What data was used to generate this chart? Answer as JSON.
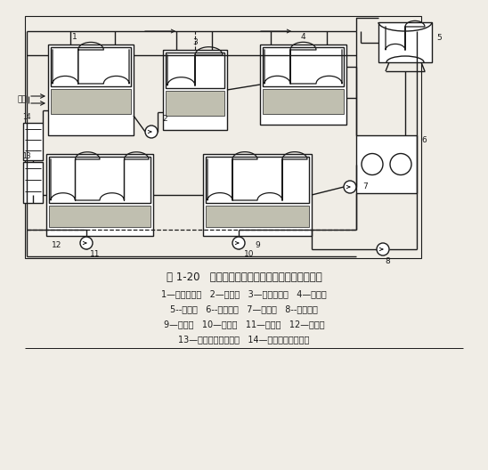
{
  "title": "图 1-20   倒串联流程的溴化锂吸收式机组工作原理",
  "caption_lines": [
    "1—高压发生器   2—溶液泵   3—低压发生器   4—冷凝器",
    "5--冷却塔   6--冷却盘管   7—冷水泵   8--冷却水泵",
    "9—蒸发器   10—冷剂泵   11—溶液泵   12—吸收器",
    "13—低温溶液热交换器   14—高温溶液热交换器"
  ],
  "bg_color": "#f0ede6",
  "line_color": "#1a1a1a",
  "hatch_color": "#c0bfb0",
  "white": "#ffffff"
}
